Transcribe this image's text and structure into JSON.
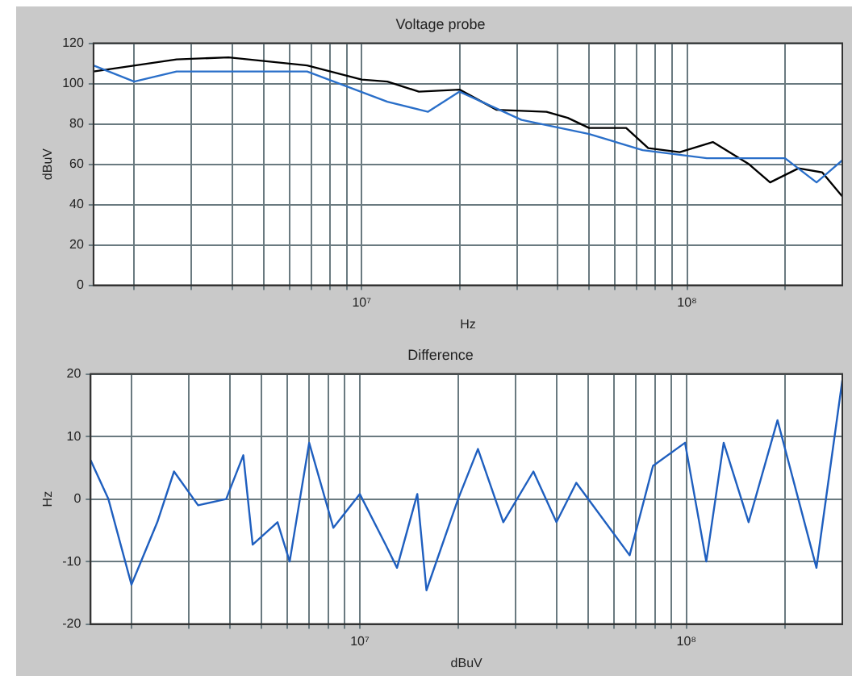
{
  "chart_data": [
    {
      "type": "line",
      "title": "Voltage probe",
      "xlabel": "Hz",
      "ylabel": "dBuV",
      "log": "x",
      "grid": true,
      "legend": false,
      "marker": "none",
      "line_style": "solid",
      "xlim": [
        1500000,
        300000000
      ],
      "ylim": [
        0,
        120
      ],
      "yticks": [
        0,
        20,
        40,
        60,
        80,
        100,
        120
      ],
      "xticks": [
        {
          "value": 2000000,
          "label": null
        },
        {
          "value": 3000000,
          "label": null
        },
        {
          "value": 4000000,
          "label": null
        },
        {
          "value": 5000000,
          "label": null
        },
        {
          "value": 6000000,
          "label": null
        },
        {
          "value": 7000000,
          "label": null
        },
        {
          "value": 8000000,
          "label": null
        },
        {
          "value": 9000000,
          "label": null
        },
        {
          "value": 10000000,
          "label": "10⁷"
        },
        {
          "value": 20000000,
          "label": null
        },
        {
          "value": 30000000,
          "label": null
        },
        {
          "value": 40000000,
          "label": null
        },
        {
          "value": 50000000,
          "label": null
        },
        {
          "value": 60000000,
          "label": null
        },
        {
          "value": 70000000,
          "label": null
        },
        {
          "value": 80000000,
          "label": null
        },
        {
          "value": 90000000,
          "label": null
        },
        {
          "value": 100000000,
          "label": "10⁸"
        },
        {
          "value": 200000000,
          "label": null
        }
      ],
      "series": [
        {
          "color": "#2a6fc9",
          "x": [
            1500000,
            2000000,
            2700000,
            6800000,
            12000000,
            16000000,
            20000000,
            31000000,
            50000000,
            73000000,
            115000000,
            170000000,
            200000000,
            250000000,
            300000000
          ],
          "values": [
            109,
            101,
            106,
            106,
            91,
            86,
            96,
            82,
            75,
            67,
            63,
            63,
            63,
            51,
            62
          ]
        },
        {
          "color": "#000000",
          "x": [
            1500000,
            2700000,
            3900000,
            6800000,
            10000000,
            12000000,
            15000000,
            20000000,
            26000000,
            37000000,
            43000000,
            50000000,
            65000000,
            76000000,
            95000000,
            120000000,
            155000000,
            180000000,
            220000000,
            260000000,
            300000000
          ],
          "values": [
            106,
            112,
            113,
            109,
            102,
            101,
            96,
            97,
            87,
            86,
            83,
            78,
            78,
            68,
            66,
            71,
            60,
            51,
            58,
            56,
            44
          ]
        }
      ]
    },
    {
      "type": "line",
      "title": "Difference",
      "xlabel": "dBuV",
      "ylabel": "Hz",
      "log": "x",
      "grid": true,
      "legend": false,
      "marker": "none",
      "line_style": "solid",
      "xlim": [
        1500000,
        300000000
      ],
      "ylim": [
        -20,
        20
      ],
      "yticks": [
        -20,
        -10,
        0,
        10,
        20
      ],
      "xticks": [
        {
          "value": 2000000,
          "label": null
        },
        {
          "value": 3000000,
          "label": null
        },
        {
          "value": 4000000,
          "label": null
        },
        {
          "value": 5000000,
          "label": null
        },
        {
          "value": 6000000,
          "label": null
        },
        {
          "value": 7000000,
          "label": null
        },
        {
          "value": 8000000,
          "label": null
        },
        {
          "value": 9000000,
          "label": null
        },
        {
          "value": 10000000,
          "label": "10⁷"
        },
        {
          "value": 20000000,
          "label": null
        },
        {
          "value": 30000000,
          "label": null
        },
        {
          "value": 40000000,
          "label": null
        },
        {
          "value": 50000000,
          "label": null
        },
        {
          "value": 60000000,
          "label": null
        },
        {
          "value": 70000000,
          "label": null
        },
        {
          "value": 80000000,
          "label": null
        },
        {
          "value": 90000000,
          "label": null
        },
        {
          "value": 100000000,
          "label": "10⁸"
        },
        {
          "value": 200000000,
          "label": null
        }
      ],
      "series": [
        {
          "color": "#1f5fbf",
          "x": [
            1500000,
            1700000,
            2000000,
            2400000,
            2700000,
            3200000,
            3900000,
            4400000,
            4700000,
            5600000,
            6100000,
            7000000,
            8300000,
            10000000,
            12000000,
            13000000,
            15000000,
            16000000,
            20000000,
            23000000,
            27500000,
            34000000,
            40000000,
            46000000,
            67000000,
            79000000,
            99000000,
            115000000,
            130000000,
            155000000,
            190000000,
            250000000,
            300000000
          ],
          "values": [
            6.2,
            0,
            -13.7,
            -3.7,
            4.4,
            -1,
            0,
            7,
            -7.3,
            -3.7,
            -10,
            9,
            -4.6,
            0.8,
            -7.3,
            -11,
            0.8,
            -14.6,
            0,
            8,
            -3.7,
            4.4,
            -3.7,
            2.6,
            -9,
            5.3,
            9,
            -10,
            9,
            -3.7,
            12.6,
            -11,
            19
          ]
        }
      ]
    }
  ]
}
